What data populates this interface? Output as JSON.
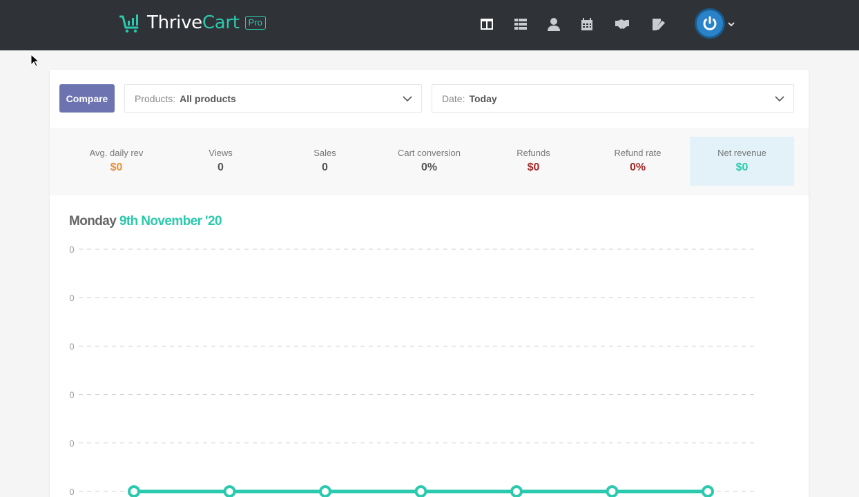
{
  "brand": {
    "name_part1": "Thrive",
    "name_part2": "Cart",
    "badge": "Pro",
    "accent_color": "#2bc9ad",
    "header_color": "#2f3338"
  },
  "nav": {
    "icons": [
      {
        "name": "dashboard-icon",
        "active": true
      },
      {
        "name": "list-icon",
        "active": false
      },
      {
        "name": "user-icon",
        "active": false
      },
      {
        "name": "calendar-icon",
        "active": false
      },
      {
        "name": "handshake-icon",
        "active": false
      },
      {
        "name": "edit-document-icon",
        "active": false
      }
    ],
    "avatar_icon": "power-icon"
  },
  "filters": {
    "compare_label": "Compare",
    "products_label": "Products:",
    "products_value": "All products",
    "date_label": "Date:",
    "date_value": "Today"
  },
  "stats": [
    {
      "label": "Avg. daily rev",
      "value": "$0",
      "color": "#e8913a"
    },
    {
      "label": "Views",
      "value": "0",
      "color": "#555555"
    },
    {
      "label": "Sales",
      "value": "0",
      "color": "#555555"
    },
    {
      "label": "Cart conversion",
      "value": "0%",
      "color": "#555555"
    },
    {
      "label": "Refunds",
      "value": "$0",
      "color": "#a52a2a"
    },
    {
      "label": "Refund rate",
      "value": "0%",
      "color": "#a52a2a"
    },
    {
      "label": "Net revenue",
      "value": "$0",
      "color": "#2bc9ad"
    }
  ],
  "chart_header": {
    "day": "Monday",
    "date": "9th November '20"
  },
  "chart_data": {
    "type": "line",
    "title": "",
    "xlabel": "",
    "ylabel": "",
    "y_tick_labels": [
      "0",
      "0",
      "0",
      "0",
      "0",
      "0"
    ],
    "grid": true,
    "series": [
      {
        "values": [
          0,
          0,
          0,
          0,
          0,
          0,
          0
        ],
        "color": "#2bc9ad"
      }
    ]
  }
}
